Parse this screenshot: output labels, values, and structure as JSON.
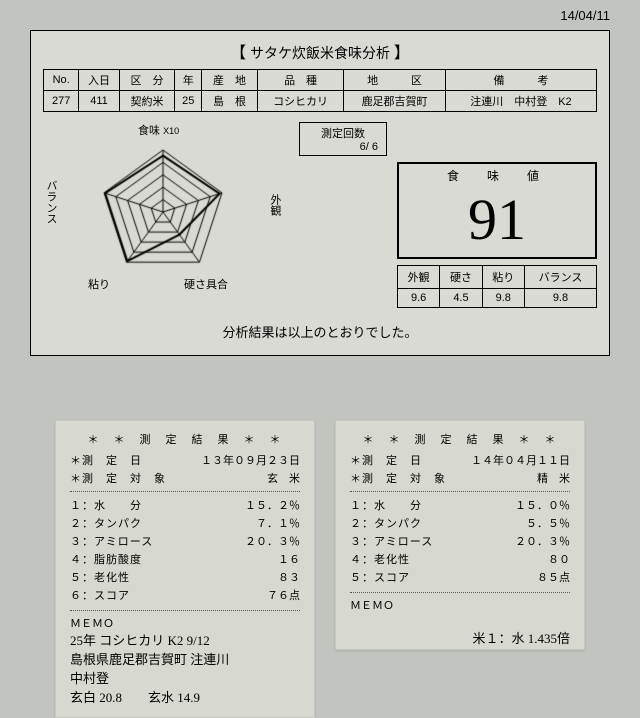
{
  "top_date": "14/04/11",
  "title": {
    "open": "【",
    "text": "サタケ炊飯米食味分析",
    "close": "】"
  },
  "info_headers": [
    "No.",
    "入日",
    "区　分",
    "年",
    "産　地",
    "品　種",
    "地　　　区",
    "備　　　考"
  ],
  "info_values": [
    "277",
    "411",
    "契約米",
    "25",
    "島　根",
    "コシヒカリ",
    "鹿足郡吉賀町",
    "注連川　中村登　K2"
  ],
  "radar": {
    "axes": [
      "食味",
      "外観",
      "硬さ具合",
      "粘り",
      "バランス"
    ],
    "note": "X10",
    "ring_count": 5,
    "line_color": "#000000",
    "bg": "#d9dad3",
    "values": [
      9.1,
      9.6,
      4.5,
      9.8,
      9.8
    ]
  },
  "meas": {
    "label": "測定回数",
    "value": "6/ 6"
  },
  "score": {
    "label": "食　味　値",
    "value": "91"
  },
  "sub_headers": [
    "外観",
    "硬さ",
    "粘り",
    "バランス"
  ],
  "sub_values": [
    "9.6",
    "4.5",
    "9.8",
    "9.8"
  ],
  "result_text": "分析結果は以上のとおりでした。",
  "receipt_left": {
    "title": "＊　＊　測　定　結　果　＊　＊",
    "rows_top": [
      [
        "＊測　定　日",
        "１３年０９月２３日"
      ],
      [
        "＊測　定　対　象",
        "玄　米"
      ]
    ],
    "rows": [
      [
        "１：水　　分",
        "１５．２％"
      ],
      [
        "２：タンパク",
        "７．１％"
      ],
      [
        "３：アミロース",
        "２０．３％"
      ],
      [
        "４：脂肪酸度",
        "１６"
      ],
      [
        "５：老化性",
        "８３"
      ],
      [
        "６：スコア",
        "７６点"
      ]
    ],
    "memo_label": "ＭＥＭＯ",
    "memo_hand1": "25年 コシヒカリ K2  9/12",
    "memo_hand2": "島根県鹿足郡吉賀町 注連川",
    "memo_hand3": "中村登",
    "memo_hand4": "玄白 20.8　　玄水 14.9"
  },
  "receipt_right": {
    "title": "＊　＊　測　定　結　果　＊　＊",
    "rows_top": [
      [
        "＊測　定　日",
        "１４年０４月１１日"
      ],
      [
        "＊測　定　対　象",
        "精　米"
      ]
    ],
    "rows": [
      [
        "１：水　　分",
        "１５．０％"
      ],
      [
        "２：タンパク",
        "５．５％"
      ],
      [
        "３：アミロース",
        "２０．３％"
      ],
      [
        "４：老化性",
        "８０"
      ],
      [
        "５：スコア",
        "８５点"
      ]
    ],
    "memo_label": "ＭＥＭＯ",
    "memo_hand": "米１：水 1.435倍"
  }
}
